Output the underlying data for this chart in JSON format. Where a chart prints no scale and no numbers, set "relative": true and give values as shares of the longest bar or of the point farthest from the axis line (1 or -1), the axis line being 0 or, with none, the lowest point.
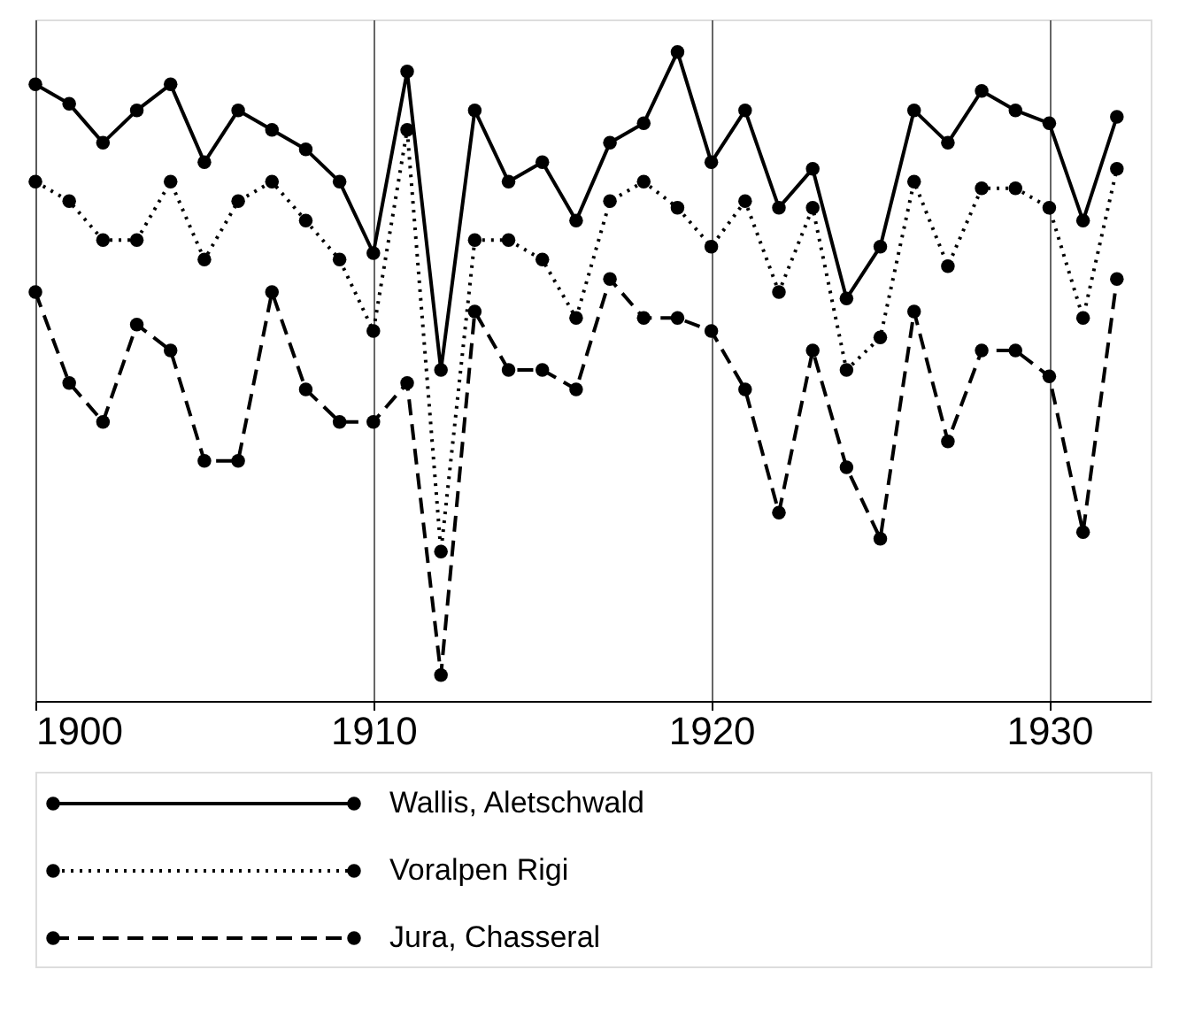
{
  "chart_data": {
    "type": "line",
    "relative": true,
    "x": [
      1900,
      1901,
      1902,
      1903,
      1904,
      1905,
      1906,
      1907,
      1908,
      1909,
      1910,
      1911,
      1912,
      1913,
      1914,
      1915,
      1916,
      1917,
      1918,
      1919,
      1920,
      1921,
      1922,
      1923,
      1924,
      1925,
      1926,
      1927,
      1928,
      1929,
      1930,
      1931,
      1932
    ],
    "xlim": [
      1900,
      1933
    ],
    "xticks": [
      1900,
      1910,
      1920,
      1930
    ],
    "grid": "x",
    "legend": "bottom",
    "marker": "circle",
    "series": [
      {
        "name": "Wallis, Aletschwald",
        "color": "#000000",
        "line_style": "solid",
        "values": [
          0.95,
          0.92,
          0.86,
          0.91,
          0.95,
          0.83,
          0.91,
          0.88,
          0.85,
          0.8,
          0.69,
          0.97,
          0.51,
          0.91,
          0.8,
          0.83,
          0.74,
          0.86,
          0.89,
          1.0,
          0.83,
          0.91,
          0.76,
          0.82,
          0.62,
          0.7,
          0.91,
          0.86,
          0.94,
          0.91,
          0.89,
          0.74,
          0.9
        ]
      },
      {
        "name": "Voralpen Rigi",
        "color": "#000000",
        "line_style": "dotted",
        "values": [
          0.8,
          0.77,
          0.71,
          0.71,
          0.8,
          0.68,
          0.77,
          0.8,
          0.74,
          0.68,
          0.57,
          0.88,
          0.23,
          0.71,
          0.71,
          0.68,
          0.59,
          0.77,
          0.8,
          0.76,
          0.7,
          0.77,
          0.63,
          0.76,
          0.51,
          0.56,
          0.8,
          0.67,
          0.79,
          0.79,
          0.76,
          0.59,
          0.82
        ]
      },
      {
        "name": "Jura, Chasseral",
        "color": "#000000",
        "line_style": "dashed",
        "values": [
          0.63,
          0.49,
          0.43,
          0.58,
          0.54,
          0.37,
          0.37,
          0.63,
          0.48,
          0.43,
          0.43,
          0.49,
          0.04,
          0.6,
          0.51,
          0.51,
          0.48,
          0.65,
          0.59,
          0.59,
          0.57,
          0.48,
          0.29,
          0.54,
          0.36,
          0.25,
          0.6,
          0.4,
          0.54,
          0.54,
          0.5,
          0.26,
          0.65
        ]
      }
    ]
  }
}
